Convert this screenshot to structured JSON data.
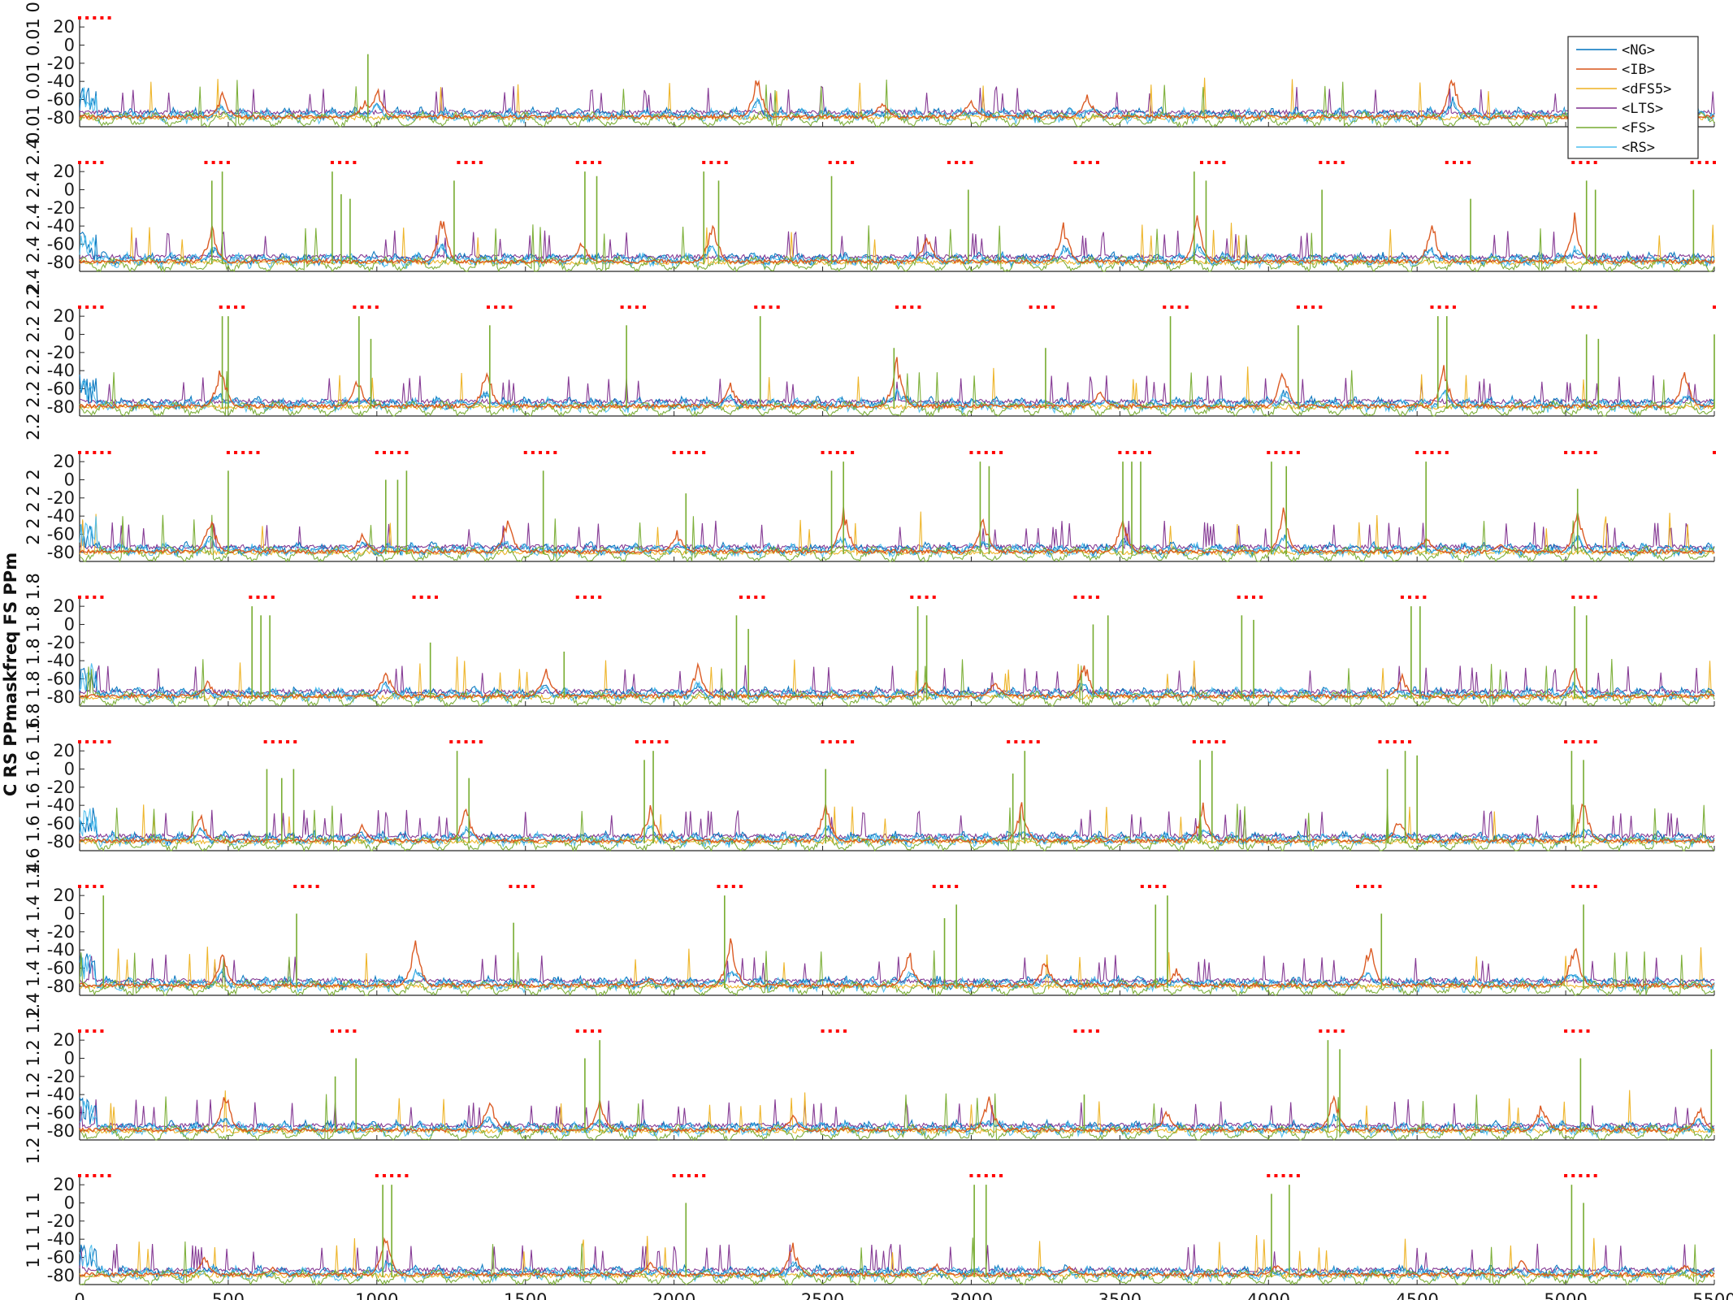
{
  "figure": {
    "ylabel": "C RS PPmaskfreq FS PPm"
  },
  "chart_data": {
    "type": "line",
    "xlim": [
      0,
      5500
    ],
    "ylim": [
      -90,
      30
    ],
    "x_ticks": [
      0,
      500,
      1000,
      1500,
      2000,
      2500,
      3000,
      3500,
      4000,
      4500,
      5000,
      5500
    ],
    "y_ticks": [
      20,
      0,
      -20,
      -40,
      -60,
      -80
    ],
    "legend": {
      "placement": "top-right",
      "entries": [
        {
          "name": "<NG>",
          "color": "#0072BD"
        },
        {
          "name": "<IB>",
          "color": "#D95319"
        },
        {
          "name": "<dFS5>",
          "color": "#EDB120"
        },
        {
          "name": "<LTS>",
          "color": "#7E2F8E"
        },
        {
          "name": "<FS>",
          "color": "#77AC30"
        },
        {
          "name": "<RS>",
          "color": "#4DBEEE"
        }
      ]
    },
    "panels": [
      {
        "ylabel": "0.01 0.01 0.01 0",
        "marker_color": "#FF0000",
        "pulse_starts": [
          0
        ],
        "pulse_count": 5,
        "pulse_spacing": 25,
        "ib_peaks": [
          [
            480,
            -50
          ],
          [
            960,
            -58
          ],
          [
            1000,
            -40
          ],
          [
            2280,
            -30
          ],
          [
            2700,
            -58
          ],
          [
            3000,
            -55
          ],
          [
            3390,
            -50
          ],
          [
            4620,
            -25
          ]
        ],
        "fs_spikes": [
          [
            970,
            -10
          ]
        ]
      },
      {
        "ylabel": "2.4 2.4 2.4 2.4 2.4",
        "marker_color": "#FF0000",
        "pulse_starts": [
          0,
          425,
          850,
          1275,
          1675,
          2100,
          2525,
          2925,
          3350,
          3775,
          4175,
          4600,
          5025,
          5425
        ],
        "pulse_count": 4,
        "pulse_spacing": 25,
        "ib_peaks": [
          [
            445,
            -35
          ],
          [
            1220,
            -25
          ],
          [
            1690,
            -55
          ],
          [
            2130,
            -25
          ],
          [
            2850,
            -45
          ],
          [
            3310,
            -30
          ],
          [
            3760,
            -20
          ],
          [
            4550,
            -30
          ],
          [
            5030,
            -25
          ]
        ],
        "fs_spikes": [
          [
            445,
            10
          ],
          [
            480,
            20
          ],
          [
            850,
            20
          ],
          [
            880,
            -5
          ],
          [
            910,
            -10
          ],
          [
            1260,
            10
          ],
          [
            1700,
            20
          ],
          [
            1740,
            15
          ],
          [
            2100,
            20
          ],
          [
            2150,
            10
          ],
          [
            2530,
            15
          ],
          [
            2990,
            0
          ],
          [
            3750,
            20
          ],
          [
            3790,
            10
          ],
          [
            4180,
            0
          ],
          [
            4680,
            -10
          ],
          [
            5070,
            10
          ],
          [
            5100,
            0
          ],
          [
            5430,
            0
          ]
        ]
      },
      {
        "ylabel": "2.2 2.2 2.2 2.2 2.2",
        "marker_color": "#FF0000",
        "pulse_starts": [
          0,
          475,
          925,
          1375,
          1825,
          2275,
          2750,
          3200,
          3650,
          4100,
          4550,
          5025,
          5500
        ],
        "pulse_count": 4,
        "pulse_spacing": 25,
        "ib_peaks": [
          [
            475,
            -30
          ],
          [
            935,
            -45
          ],
          [
            1370,
            -30
          ],
          [
            2190,
            -50
          ],
          [
            2750,
            -20
          ],
          [
            3430,
            -60
          ],
          [
            4050,
            -30
          ],
          [
            4590,
            -30
          ],
          [
            5400,
            -35
          ]
        ],
        "fs_spikes": [
          [
            480,
            20
          ],
          [
            500,
            20
          ],
          [
            940,
            20
          ],
          [
            980,
            -5
          ],
          [
            1380,
            10
          ],
          [
            1840,
            10
          ],
          [
            2290,
            20
          ],
          [
            2740,
            -15
          ],
          [
            3250,
            -15
          ],
          [
            3670,
            20
          ],
          [
            4100,
            10
          ],
          [
            4570,
            20
          ],
          [
            4600,
            20
          ],
          [
            5070,
            0
          ],
          [
            5110,
            -5
          ],
          [
            5500,
            0
          ]
        ]
      },
      {
        "ylabel": "2 2 2 2 2",
        "marker_color": "#FF0000",
        "pulse_starts": [
          0,
          500,
          1000,
          1500,
          2000,
          2500,
          3000,
          3500,
          4000,
          4500,
          5000,
          5500
        ],
        "pulse_count": 5,
        "pulse_spacing": 25,
        "ib_peaks": [
          [
            440,
            -35
          ],
          [
            950,
            -55
          ],
          [
            1440,
            -40
          ],
          [
            2010,
            -55
          ],
          [
            2570,
            -25
          ],
          [
            3040,
            -35
          ],
          [
            3510,
            -40
          ],
          [
            4050,
            -30
          ],
          [
            4530,
            -60
          ],
          [
            4780,
            -70
          ],
          [
            5040,
            -30
          ]
        ],
        "fs_spikes": [
          [
            500,
            10
          ],
          [
            1030,
            0
          ],
          [
            1070,
            0
          ],
          [
            1100,
            10
          ],
          [
            1560,
            10
          ],
          [
            2040,
            -15
          ],
          [
            2530,
            10
          ],
          [
            2570,
            20
          ],
          [
            3030,
            20
          ],
          [
            3060,
            15
          ],
          [
            3510,
            20
          ],
          [
            3540,
            20
          ],
          [
            3570,
            20
          ],
          [
            4010,
            20
          ],
          [
            4060,
            15
          ],
          [
            4530,
            20
          ],
          [
            5040,
            -10
          ]
        ]
      },
      {
        "ylabel": "1.8 1.8 1.8 1.8 1.8",
        "marker_color": "#FF0000",
        "pulse_starts": [
          0,
          575,
          1125,
          1675,
          2225,
          2800,
          3350,
          3900,
          4450,
          5025
        ],
        "pulse_count": 4,
        "pulse_spacing": 25,
        "ib_peaks": [
          [
            430,
            -60
          ],
          [
            1030,
            -45
          ],
          [
            1570,
            -40
          ],
          [
            2080,
            -40
          ],
          [
            2850,
            -60
          ],
          [
            3080,
            -60
          ],
          [
            3380,
            -35
          ],
          [
            4450,
            -55
          ],
          [
            5030,
            -40
          ]
        ],
        "fs_spikes": [
          [
            580,
            20
          ],
          [
            610,
            10
          ],
          [
            640,
            10
          ],
          [
            1180,
            -20
          ],
          [
            1630,
            -30
          ],
          [
            2210,
            10
          ],
          [
            2250,
            -5
          ],
          [
            2820,
            20
          ],
          [
            2850,
            10
          ],
          [
            3410,
            0
          ],
          [
            3460,
            10
          ],
          [
            3910,
            10
          ],
          [
            3950,
            5
          ],
          [
            4480,
            20
          ],
          [
            4510,
            20
          ],
          [
            5030,
            20
          ],
          [
            5070,
            10
          ]
        ]
      },
      {
        "ylabel": "1.6 1.6 1.6 1.6 1.6",
        "marker_color": "#FF0000",
        "pulse_starts": [
          0,
          625,
          1250,
          1875,
          2500,
          3125,
          3750,
          4375,
          5000
        ],
        "pulse_count": 5,
        "pulse_spacing": 25,
        "ib_peaks": [
          [
            405,
            -45
          ],
          [
            950,
            -60
          ],
          [
            1300,
            -35
          ],
          [
            1920,
            -35
          ],
          [
            2510,
            -30
          ],
          [
            3170,
            -35
          ],
          [
            3780,
            -35
          ],
          [
            4440,
            -50
          ],
          [
            5060,
            -30
          ]
        ],
        "fs_spikes": [
          [
            630,
            0
          ],
          [
            680,
            -10
          ],
          [
            720,
            0
          ],
          [
            1270,
            20
          ],
          [
            1310,
            -10
          ],
          [
            1900,
            10
          ],
          [
            1930,
            20
          ],
          [
            2510,
            0
          ],
          [
            3140,
            -5
          ],
          [
            3180,
            20
          ],
          [
            3770,
            10
          ],
          [
            3810,
            20
          ],
          [
            4400,
            0
          ],
          [
            4460,
            20
          ],
          [
            4500,
            15
          ],
          [
            5020,
            20
          ],
          [
            5060,
            10
          ]
        ]
      },
      {
        "ylabel": "1.4 1.4 1.4 1.4 1.4",
        "marker_color": "#FF0000",
        "pulse_starts": [
          0,
          725,
          1450,
          2150,
          2875,
          3575,
          4300,
          5025
        ],
        "pulse_count": 4,
        "pulse_spacing": 25,
        "ib_peaks": [
          [
            480,
            -40
          ],
          [
            1130,
            -25
          ],
          [
            1920,
            -70
          ],
          [
            2190,
            -20
          ],
          [
            2790,
            -35
          ],
          [
            3250,
            -45
          ],
          [
            3690,
            -60
          ],
          [
            4340,
            -25
          ],
          [
            5030,
            -25
          ]
        ],
        "fs_spikes": [
          [
            80,
            20
          ],
          [
            730,
            0
          ],
          [
            1460,
            -10
          ],
          [
            2170,
            20
          ],
          [
            2910,
            -5
          ],
          [
            2950,
            10
          ],
          [
            3620,
            10
          ],
          [
            3660,
            20
          ],
          [
            4380,
            0
          ],
          [
            5060,
            10
          ]
        ]
      },
      {
        "ylabel": "1.2 1.2 1.2 1.2 1.2",
        "marker_color": "#FF0000",
        "pulse_starts": [
          0,
          850,
          1675,
          2500,
          3350,
          4175,
          5000
        ],
        "pulse_count": 4,
        "pulse_spacing": 25,
        "ib_peaks": [
          [
            490,
            -30
          ],
          [
            1380,
            -40
          ],
          [
            1750,
            -45
          ],
          [
            2400,
            -60
          ],
          [
            3060,
            -35
          ],
          [
            3660,
            -55
          ],
          [
            4220,
            -35
          ],
          [
            4920,
            -45
          ],
          [
            5450,
            -50
          ]
        ],
        "fs_spikes": [
          [
            860,
            -20
          ],
          [
            930,
            0
          ],
          [
            1700,
            0
          ],
          [
            1750,
            20
          ],
          [
            3380,
            -40
          ],
          [
            4200,
            20
          ],
          [
            4240,
            10
          ],
          [
            5050,
            0
          ],
          [
            5490,
            10
          ]
        ]
      },
      {
        "ylabel": "1 1 1 1 1",
        "marker_color": "#FF0000",
        "pulse_starts": [
          0,
          1000,
          2000,
          3000,
          4000,
          5000
        ],
        "pulse_count": 5,
        "pulse_spacing": 25,
        "ib_peaks": [
          [
            420,
            -55
          ],
          [
            650,
            -70
          ],
          [
            1030,
            -30
          ],
          [
            1920,
            -60
          ],
          [
            2400,
            -40
          ],
          [
            2880,
            -65
          ],
          [
            3330,
            -70
          ],
          [
            4030,
            -65
          ],
          [
            4850,
            -60
          ],
          [
            5400,
            -65
          ]
        ],
        "fs_spikes": [
          [
            1020,
            20
          ],
          [
            1050,
            20
          ],
          [
            2040,
            0
          ],
          [
            3010,
            20
          ],
          [
            3050,
            20
          ],
          [
            4010,
            10
          ],
          [
            4070,
            20
          ],
          [
            5020,
            20
          ],
          [
            5060,
            0
          ]
        ]
      }
    ]
  }
}
